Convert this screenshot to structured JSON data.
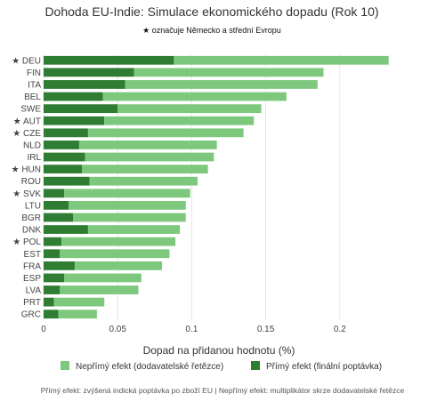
{
  "chart_data": {
    "type": "bar",
    "orientation": "horizontal",
    "stacked": true,
    "title": "Dohoda EU-Indie: Simulace ekonomického dopadu (Rok 10)",
    "subtitle": "★ označuje Německo a střední Evropu",
    "xlabel": "Dopad na přidanou hodnotu (%)",
    "ylabel": "",
    "xlim": [
      0,
      0.235
    ],
    "x_ticks": [
      "0",
      "0.05",
      "0.1",
      "0.15",
      "0.2"
    ],
    "x_tick_values": [
      0,
      0.05,
      0.1,
      0.15,
      0.2
    ],
    "grid": true,
    "legend_position": "bottom",
    "categories": [
      "DEU",
      "FIN",
      "ITA",
      "BEL",
      "SWE",
      "AUT",
      "CZE",
      "NLD",
      "IRL",
      "HUN",
      "ROU",
      "SVK",
      "LTU",
      "BGR",
      "DNK",
      "POL",
      "EST",
      "FRA",
      "ESP",
      "LVA",
      "PRT",
      "GRC"
    ],
    "category_labels": [
      "★ DEU",
      "FIN",
      "ITA",
      "BEL",
      "SWE",
      "★ AUT",
      "★ CZE",
      "NLD",
      "IRL",
      "★ HUN",
      "ROU",
      "★ SVK",
      "LTU",
      "BGR",
      "DNK",
      "★ POL",
      "EST",
      "FRA",
      "ESP",
      "LVA",
      "PRT",
      "GRC"
    ],
    "series": [
      {
        "name": "Přímý efekt (finální poptávka)",
        "color": "#2e7d32",
        "values": [
          0.088,
          0.061,
          0.055,
          0.04,
          0.05,
          0.041,
          0.03,
          0.024,
          0.028,
          0.026,
          0.031,
          0.014,
          0.017,
          0.02,
          0.03,
          0.012,
          0.011,
          0.021,
          0.014,
          0.011,
          0.007,
          0.01
        ]
      },
      {
        "name": "Nepřímý efekt (dodavatelské řetězce)",
        "color": "#7ec87e",
        "values": [
          0.145,
          0.128,
          0.13,
          0.124,
          0.097,
          0.101,
          0.105,
          0.093,
          0.087,
          0.085,
          0.073,
          0.085,
          0.079,
          0.076,
          0.062,
          0.077,
          0.074,
          0.059,
          0.052,
          0.053,
          0.034,
          0.026
        ]
      }
    ],
    "legend": [
      {
        "label": "Nepřímý efekt (dodavatelské řetězce)",
        "color": "#7ec87e"
      },
      {
        "label": "Přímý efekt (finální poptávka)",
        "color": "#2e7d32"
      }
    ],
    "footnote": "Přímý efekt: zvýšená indická poptávka po zboží EU | Nepřímý efekt: multiplikátor skrze dodavatelské řetězce"
  }
}
